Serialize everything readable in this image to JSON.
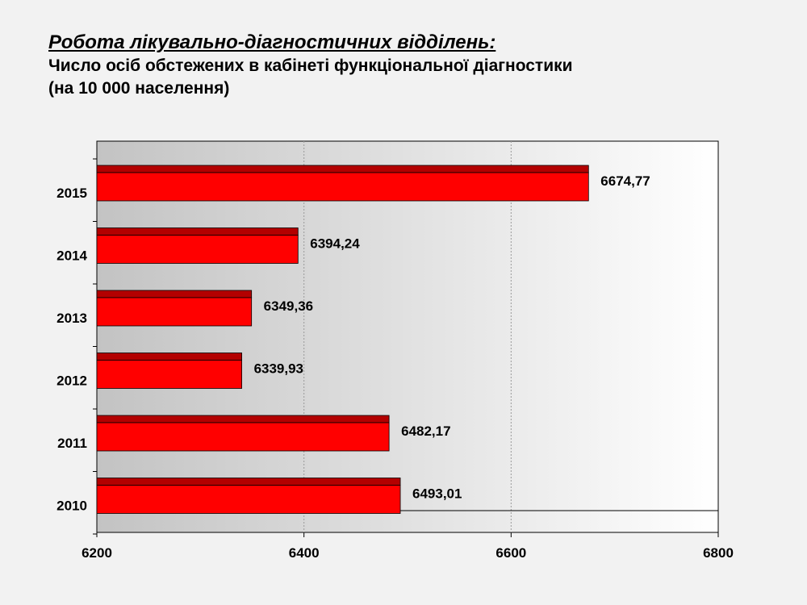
{
  "title": "Робота лікувально-діагностичних відділень:",
  "subtitle_line1": "Число осіб обстежених в кабінеті функціональної діагностики",
  "subtitle_line2": "(на 10 000 населення)",
  "colors": {
    "bar_face": "#ff0000",
    "bar_top": "#b30000",
    "plot_dark": "#c3c3c3",
    "plot_light": "#ffffff",
    "background": "#f2f2f2"
  },
  "chart_data": {
    "type": "bar",
    "orientation": "horizontal",
    "categories": [
      "2015",
      "2014",
      "2013",
      "2012",
      "2011",
      "2010"
    ],
    "values": [
      6674.77,
      6394.24,
      6349.36,
      6339.93,
      6482.17,
      6493.01
    ],
    "data_labels": [
      "6674,77",
      "6394,24",
      "6349,36",
      "6339,93",
      "6482,17",
      "6493,01"
    ],
    "xlim": [
      6200,
      6800
    ],
    "x_ticks": [
      6200,
      6400,
      6600,
      6800
    ],
    "xlabel": "",
    "ylabel": "",
    "grid": true,
    "legend": "none"
  }
}
